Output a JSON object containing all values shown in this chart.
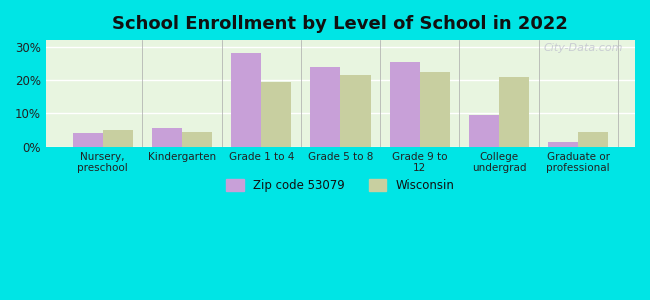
{
  "title": "School Enrollment by Level of School in 2022",
  "categories": [
    "Nursery,\npreschool",
    "Kindergarten",
    "Grade 1 to 4",
    "Grade 5 to 8",
    "Grade 9 to\n12",
    "College\nundergrad",
    "Graduate or\nprofessional"
  ],
  "zip_values": [
    4.0,
    5.5,
    28.0,
    24.0,
    25.5,
    9.5,
    1.5
  ],
  "wi_values": [
    5.0,
    4.5,
    19.5,
    21.5,
    22.5,
    21.0,
    4.5
  ],
  "zip_color": "#c8a0d8",
  "wi_color": "#c8cfa0",
  "background_color": "#00e5e5",
  "ylim": [
    0,
    32
  ],
  "yticks": [
    0,
    10,
    20,
    30
  ],
  "legend_zip_label": "Zip code 53079",
  "legend_wi_label": "Wisconsin",
  "watermark": "City-Data.com",
  "bar_width": 0.38
}
